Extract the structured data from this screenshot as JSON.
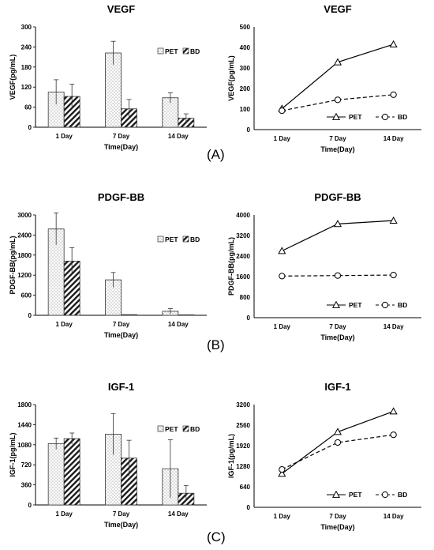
{
  "panel_labels": [
    "(A)",
    "(B)",
    "(C)"
  ],
  "chart_data": [
    {
      "type": "bar",
      "title": "VEGF",
      "xlabel": "Time(Day)",
      "ylabel": "VEGF(pg/mL)",
      "categories": [
        "1 Day",
        "7 Day",
        "14 Day"
      ],
      "ylim": [
        0,
        300
      ],
      "yticks": [
        0,
        60,
        120,
        180,
        240,
        300
      ],
      "legend_position": "top-right",
      "series": [
        {
          "name": "PET",
          "values": [
            105,
            222,
            88
          ],
          "errors": [
            37,
            35,
            15
          ],
          "pattern": "dots"
        },
        {
          "name": "BD",
          "values": [
            92,
            55,
            27
          ],
          "errors": [
            37,
            28,
            13
          ],
          "pattern": "hatch"
        }
      ]
    },
    {
      "type": "line",
      "title": "VEGF",
      "xlabel": "Time(Day)",
      "ylabel": "VEGF(pg/mL)",
      "categories": [
        "1 Day",
        "7 Day",
        "14 Day"
      ],
      "ylim": [
        0,
        500
      ],
      "yticks": [
        0,
        100,
        200,
        300,
        400,
        500
      ],
      "legend_position": "bottom-right",
      "series": [
        {
          "name": "PET",
          "values": [
            102,
            328,
            415
          ],
          "marker": "triangle",
          "dash": "solid"
        },
        {
          "name": "BD",
          "values": [
            92,
            145,
            170
          ],
          "marker": "circle",
          "dash": "dashed"
        }
      ]
    },
    {
      "type": "bar",
      "title": "PDGF-BB",
      "xlabel": "Time(Day)",
      "ylabel": "PDGF-BB(pg/mL)",
      "categories": [
        "1 Day",
        "7 Day",
        "14 Day"
      ],
      "ylim": [
        0,
        3000
      ],
      "yticks": [
        0,
        600,
        1200,
        1800,
        2400,
        3000
      ],
      "legend_position": "top-right",
      "series": [
        {
          "name": "PET",
          "values": [
            2580,
            1060,
            120
          ],
          "errors": [
            480,
            220,
            80
          ],
          "pattern": "dots"
        },
        {
          "name": "BD",
          "values": [
            1620,
            20,
            15
          ],
          "errors": [
            400,
            0,
            0
          ],
          "pattern": "hatch"
        }
      ]
    },
    {
      "type": "line",
      "title": "PDGF-BB",
      "xlabel": "Time(Day)",
      "ylabel": "PDGF-BB(pg/mL)",
      "categories": [
        "1 Day",
        "7 Day",
        "14 Day"
      ],
      "ylim": [
        0,
        4000
      ],
      "yticks": [
        0,
        800,
        1600,
        2400,
        3200,
        4000
      ],
      "legend_position": "bottom-right",
      "series": [
        {
          "name": "PET",
          "values": [
            2600,
            3650,
            3780
          ],
          "marker": "triangle",
          "dash": "solid"
        },
        {
          "name": "BD",
          "values": [
            1620,
            1640,
            1660
          ],
          "marker": "circle",
          "dash": "dashed"
        }
      ]
    },
    {
      "type": "bar",
      "title": "IGF-1",
      "xlabel": "Time(Day)",
      "ylabel": "IGF-1(pg/mL)",
      "categories": [
        "1 Day",
        "7 Day",
        "14 Day"
      ],
      "ylim": [
        0,
        1800
      ],
      "yticks": [
        0,
        360,
        720,
        1080,
        1440,
        1800
      ],
      "legend_position": "top-right",
      "series": [
        {
          "name": "PET",
          "values": [
            1100,
            1270,
            650
          ],
          "errors": [
            100,
            370,
            520
          ],
          "pattern": "dots"
        },
        {
          "name": "BD",
          "values": [
            1190,
            840,
            210
          ],
          "errors": [
            100,
            320,
            140
          ],
          "pattern": "hatch"
        }
      ]
    },
    {
      "type": "line",
      "title": "IGF-1",
      "xlabel": "Time(Day)",
      "ylabel": "IGF-1(pg/mL)",
      "categories": [
        "1 Day",
        "7 Day",
        "14 Day"
      ],
      "ylim": [
        0,
        3200
      ],
      "yticks": [
        0,
        640,
        1280,
        1920,
        2560,
        3200
      ],
      "legend_position": "bottom-right",
      "series": [
        {
          "name": "PET",
          "values": [
            1050,
            2350,
            2990
          ],
          "marker": "triangle",
          "dash": "solid"
        },
        {
          "name": "BD",
          "values": [
            1180,
            2020,
            2260
          ],
          "marker": "circle",
          "dash": "dashed"
        }
      ]
    }
  ]
}
